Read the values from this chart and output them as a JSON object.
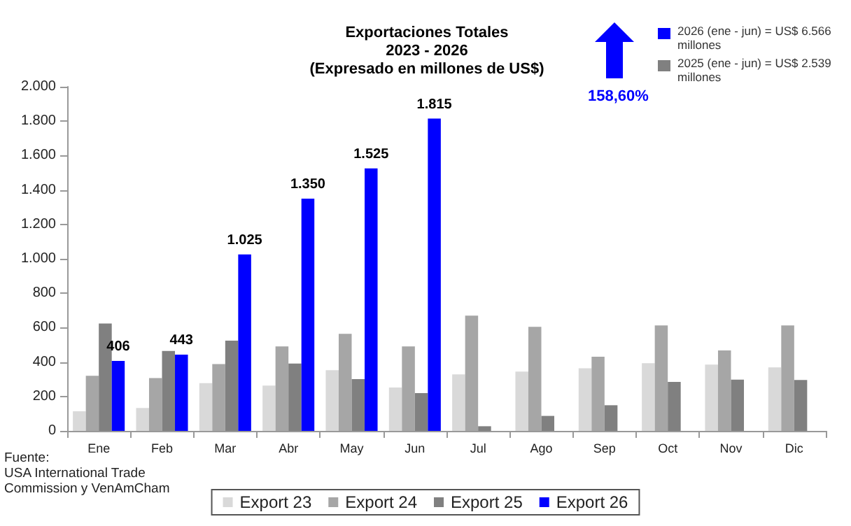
{
  "chart_data": {
    "type": "bar",
    "title": "Exportaciones Totales\n2023 - 2026\n(Expresado en millones de US$)",
    "categories": [
      "Ene",
      "Feb",
      "Mar",
      "Abr",
      "May",
      "Jun",
      "Jul",
      "Ago",
      "Sep",
      "Oct",
      "Nov",
      "Dic"
    ],
    "series": [
      {
        "name": "Export 23",
        "color": "#d9d9d9",
        "values": [
          114,
          133,
          277,
          263,
          353,
          252,
          328,
          345,
          364,
          393,
          385,
          369
        ]
      },
      {
        "name": "Export 24",
        "color": "#a6a6a6",
        "values": [
          320,
          307,
          388,
          491,
          564,
          491,
          670,
          605,
          431,
          613,
          467,
          613
        ]
      },
      {
        "name": "Export 25",
        "color": "#808080",
        "values": [
          624,
          464,
          524,
          391,
          301,
          220,
          27,
          87,
          149,
          285,
          298,
          296
        ]
      },
      {
        "name": "Export 26",
        "color": "#0000ff",
        "values": [
          406,
          443,
          1025,
          1350,
          1525,
          1815,
          null,
          null,
          null,
          null,
          null,
          null
        ],
        "value_labels": [
          "406",
          "443",
          "1.025",
          "1.350",
          "1.525",
          "1.815",
          null,
          null,
          null,
          null,
          null,
          null
        ]
      }
    ],
    "ylim": [
      0,
      2000
    ],
    "yticks": [
      0,
      200,
      400,
      600,
      800,
      {
        "value": 1000,
        "label": "1.000"
      },
      {
        "value": 1200,
        "label": "1.200"
      },
      {
        "value": 1400,
        "label": "1.400"
      },
      {
        "value": 1600,
        "label": "1.600"
      },
      {
        "value": 1800,
        "label": "1.800"
      },
      {
        "value": 2000,
        "label": "2.000"
      }
    ],
    "grid": false,
    "legend": "bottom",
    "annotations": [
      "2026 (ene - jun) = US$ 6.566\nmillones",
      "2025 (ene - jun) = US$ 2.539\nmillones",
      "158,60%",
      "Fuente:\nUSA International Trade\nCommission y VenAmCham"
    ]
  }
}
